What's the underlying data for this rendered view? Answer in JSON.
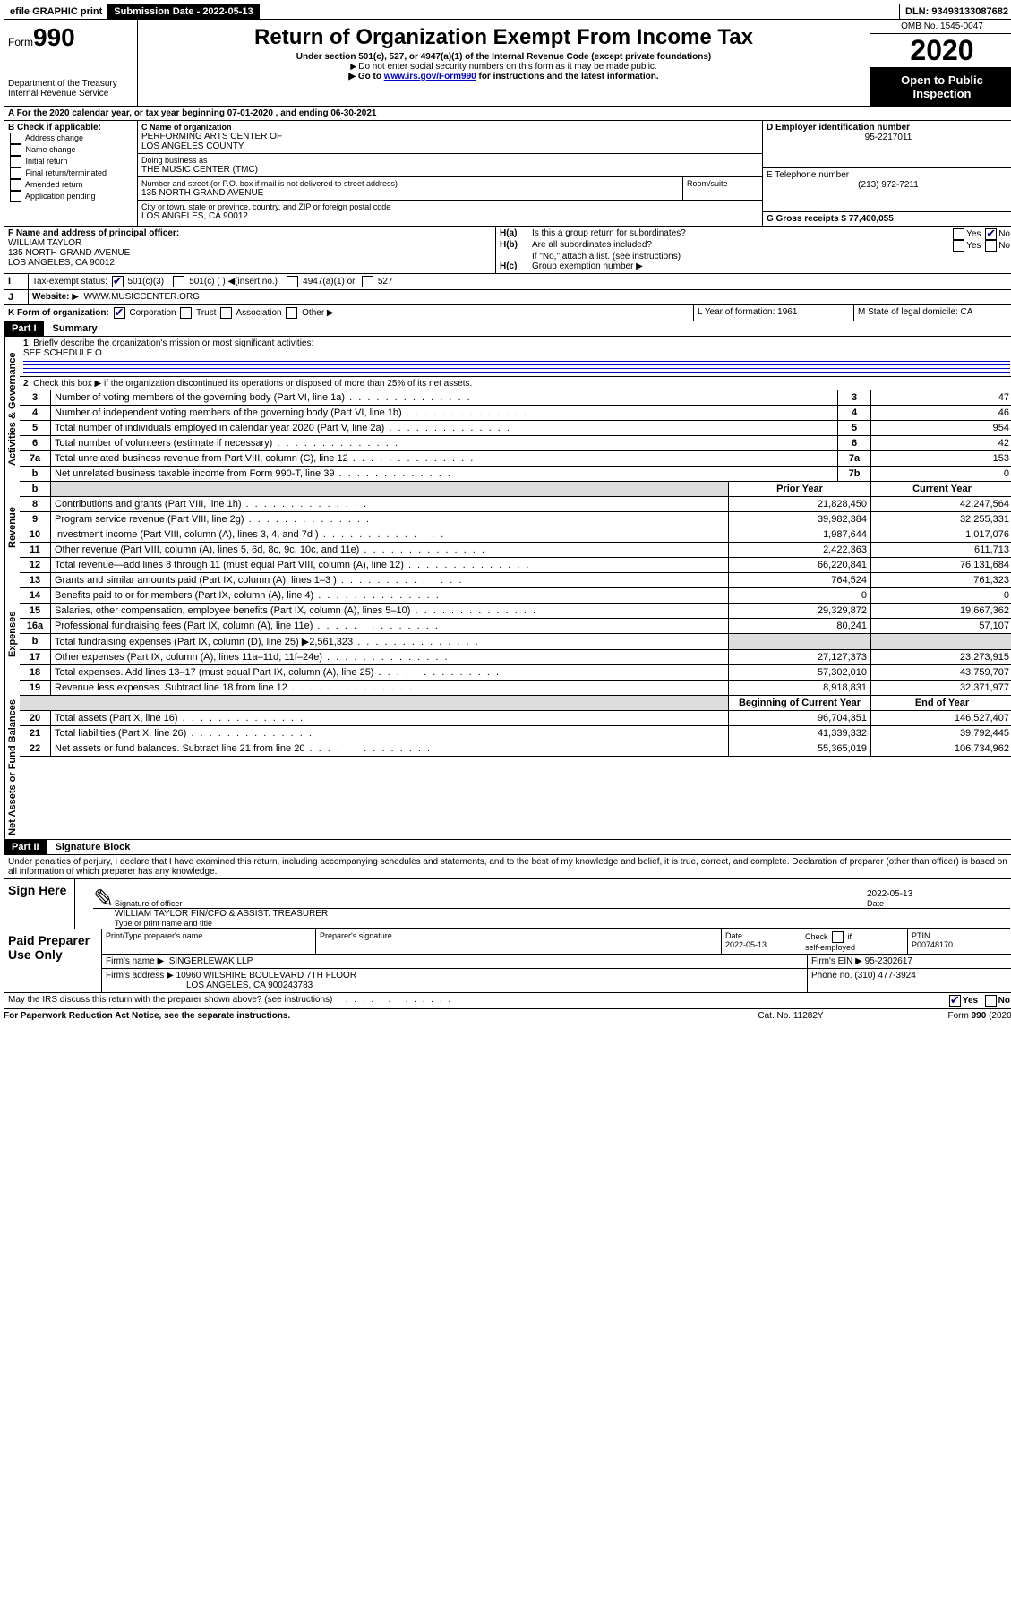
{
  "top": {
    "efile": "efile GRAPHIC print",
    "subdate_lbl": "Submission Date - 2022-05-13",
    "dln_lbl": "DLN: 93493133087682"
  },
  "hdr": {
    "form_lbl": "Form",
    "form_no": "990",
    "dept": "Department of the Treasury\nInternal Revenue Service",
    "title": "Return of Organization Exempt From Income Tax",
    "sub": "Under section 501(c), 527, or 4947(a)(1) of the Internal Revenue Code (except private foundations)",
    "note1": "Do not enter social security numbers on this form as it may be made public.",
    "note2_a": "Go to ",
    "note2_link": "www.irs.gov/Form990",
    "note2_b": " for instructions and the latest information.",
    "omb": "OMB No. 1545-0047",
    "year": "2020",
    "open": "Open to Public Inspection"
  },
  "A": {
    "line": "For the 2020 calendar year, or tax year beginning 07-01-2020    , and ending 06-30-2021"
  },
  "B": {
    "hdr": "B Check if applicable:",
    "opts": [
      "Address change",
      "Name change",
      "Initial return",
      "Final return/terminated",
      "Amended return",
      "Application pending"
    ]
  },
  "C": {
    "name_lbl": "C Name of organization",
    "name": "PERFORMING ARTS CENTER OF\nLOS ANGELES COUNTY",
    "dba_lbl": "Doing business as",
    "dba": "THE MUSIC CENTER (TMC)",
    "addr_lbl": "Number and street (or P.O. box if mail is not delivered to street address)",
    "room_lbl": "Room/suite",
    "addr": "135 NORTH GRAND AVENUE",
    "city_lbl": "City or town, state or province, country, and ZIP or foreign postal code",
    "city": "LOS ANGELES, CA  90012"
  },
  "D": {
    "lbl": "D Employer identification number",
    "val": "95-2217011"
  },
  "E": {
    "lbl": "E Telephone number",
    "val": "(213) 972-7211"
  },
  "G": {
    "lbl": "G Gross receipts $ 77,400,055"
  },
  "F": {
    "lbl": "F  Name and address of principal officer:",
    "name": "WILLIAM TAYLOR",
    "addr": "135 NORTH GRAND AVENUE\nLOS ANGELES, CA  90012"
  },
  "H": {
    "a": "Is this a group return for subordinates?",
    "b": "Are all subordinates included?",
    "note": "If \"No,\" attach a list. (see instructions)",
    "c": "Group exemption number"
  },
  "I": {
    "lbl": "Tax-exempt status:",
    "a": "501(c)(3)",
    "b": "501(c) (  )",
    "ins": "(insert no.)",
    "c": "4947(a)(1) or",
    "d": "527"
  },
  "J": {
    "lbl": "Website:",
    "val": "WWW.MUSICCENTER.ORG"
  },
  "K": {
    "lbl": "K Form of organization:",
    "a": "Corporation",
    "b": "Trust",
    "c": "Association",
    "d": "Other"
  },
  "L": {
    "lbl": "L Year of formation: 1961"
  },
  "M": {
    "lbl": "M State of legal domicile: CA"
  },
  "part1": {
    "bar": "Part I",
    "title": "Summary",
    "q1": "Briefly describe the organization's mission or most significant activities:",
    "q1val": "SEE SCHEDULE O",
    "q2": "Check this box ▶        if the organization discontinued its operations or disposed of more than 25% of its net assets.",
    "vlabel_gov": "Activities & Governance",
    "vlabel_rev": "Revenue",
    "vlabel_exp": "Expenses",
    "vlabel_net": "Net Assets or Fund Balances",
    "lines_gov": [
      {
        "n": "3",
        "t": "Number of voting members of the governing body (Part VI, line 1a)",
        "r": "3",
        "v": "47"
      },
      {
        "n": "4",
        "t": "Number of independent voting members of the governing body (Part VI, line 1b)",
        "r": "4",
        "v": "46"
      },
      {
        "n": "5",
        "t": "Total number of individuals employed in calendar year 2020 (Part V, line 2a)",
        "r": "5",
        "v": "954"
      },
      {
        "n": "6",
        "t": "Total number of volunteers (estimate if necessary)",
        "r": "6",
        "v": "42"
      },
      {
        "n": "7a",
        "t": "Total unrelated business revenue from Part VIII, column (C), line 12",
        "r": "7a",
        "v": "153"
      },
      {
        "n": "b",
        "t": "Net unrelated business taxable income from Form 990-T, line 39",
        "r": "7b",
        "v": "0"
      }
    ],
    "col_prior": "Prior Year",
    "col_curr": "Current Year",
    "lines_rev": [
      {
        "n": "8",
        "t": "Contributions and grants (Part VIII, line 1h)",
        "p": "21,828,450",
        "c": "42,247,564"
      },
      {
        "n": "9",
        "t": "Program service revenue (Part VIII, line 2g)",
        "p": "39,982,384",
        "c": "32,255,331"
      },
      {
        "n": "10",
        "t": "Investment income (Part VIII, column (A), lines 3, 4, and 7d )",
        "p": "1,987,644",
        "c": "1,017,076"
      },
      {
        "n": "11",
        "t": "Other revenue (Part VIII, column (A), lines 5, 6d, 8c, 9c, 10c, and 11e)",
        "p": "2,422,363",
        "c": "611,713"
      },
      {
        "n": "12",
        "t": "Total revenue—add lines 8 through 11 (must equal Part VIII, column (A), line 12)",
        "p": "66,220,841",
        "c": "76,131,684"
      }
    ],
    "lines_exp": [
      {
        "n": "13",
        "t": "Grants and similar amounts paid (Part IX, column (A), lines 1–3 )",
        "p": "764,524",
        "c": "761,323"
      },
      {
        "n": "14",
        "t": "Benefits paid to or for members (Part IX, column (A), line 4)",
        "p": "0",
        "c": "0"
      },
      {
        "n": "15",
        "t": "Salaries, other compensation, employee benefits (Part IX, column (A), lines 5–10)",
        "p": "29,329,872",
        "c": "19,667,362"
      },
      {
        "n": "16a",
        "t": "Professional fundraising fees (Part IX, column (A), line 11e)",
        "p": "80,241",
        "c": "57,107"
      },
      {
        "n": "b",
        "t": "Total fundraising expenses (Part IX, column (D), line 25) ▶2,561,323",
        "p": "__grey__",
        "c": "__grey__"
      },
      {
        "n": "17",
        "t": "Other expenses (Part IX, column (A), lines 11a–11d, 11f–24e)",
        "p": "27,127,373",
        "c": "23,273,915"
      },
      {
        "n": "18",
        "t": "Total expenses. Add lines 13–17 (must equal Part IX, column (A), line 25)",
        "p": "57,302,010",
        "c": "43,759,707"
      },
      {
        "n": "19",
        "t": "Revenue less expenses. Subtract line 18 from line 12",
        "p": "8,918,831",
        "c": "32,371,977"
      }
    ],
    "col_beg": "Beginning of Current Year",
    "col_end": "End of Year",
    "lines_net": [
      {
        "n": "20",
        "t": "Total assets (Part X, line 16)",
        "p": "96,704,351",
        "c": "146,527,407"
      },
      {
        "n": "21",
        "t": "Total liabilities (Part X, line 26)",
        "p": "41,339,332",
        "c": "39,792,445"
      },
      {
        "n": "22",
        "t": "Net assets or fund balances. Subtract line 21 from line 20",
        "p": "55,365,019",
        "c": "106,734,962"
      }
    ]
  },
  "part2": {
    "bar": "Part II",
    "title": "Signature Block",
    "decl": "Under penalties of perjury, I declare that I have examined this return, including accompanying schedules and statements, and to the best of my knowledge and belief, it is true, correct, and complete. Declaration of preparer (other than officer) is based on all information of which preparer has any knowledge.",
    "sign_here": "Sign Here",
    "sig_officer": "Signature of officer",
    "sig_date": "2022-05-13",
    "date_lbl": "Date",
    "officer_name": "WILLIAM TAYLOR  FIN/CFO & ASSIST. TREASURER",
    "type_lbl": "Type or print name and title",
    "paid": "Paid Preparer Use Only",
    "prep_name_lbl": "Print/Type preparer's name",
    "prep_sig_lbl": "Preparer's signature",
    "prep_date_lbl": "Date",
    "prep_date": "2022-05-13",
    "check_self": "Check        if self-employed",
    "ptin_lbl": "PTIN",
    "ptin": "P00748170",
    "firm_name_lbl": "Firm's name   ▶",
    "firm_name": "SINGERLEWAK LLP",
    "firm_ein_lbl": "Firm's EIN ▶ 95-2302617",
    "firm_addr_lbl": "Firm's address ▶",
    "firm_addr": "10960 WILSHIRE BOULEVARD 7TH FLOOR",
    "firm_city": "LOS ANGELES, CA  900243783",
    "phone_lbl": "Phone no. (310) 477-3924",
    "discuss": "May the IRS discuss this return with the preparer shown above? (see instructions)",
    "yes": "Yes",
    "no": "No",
    "paperwork": "For Paperwork Reduction Act Notice, see the separate instructions.",
    "catno": "Cat. No. 11282Y",
    "formno": "Form 990 (2020)"
  }
}
